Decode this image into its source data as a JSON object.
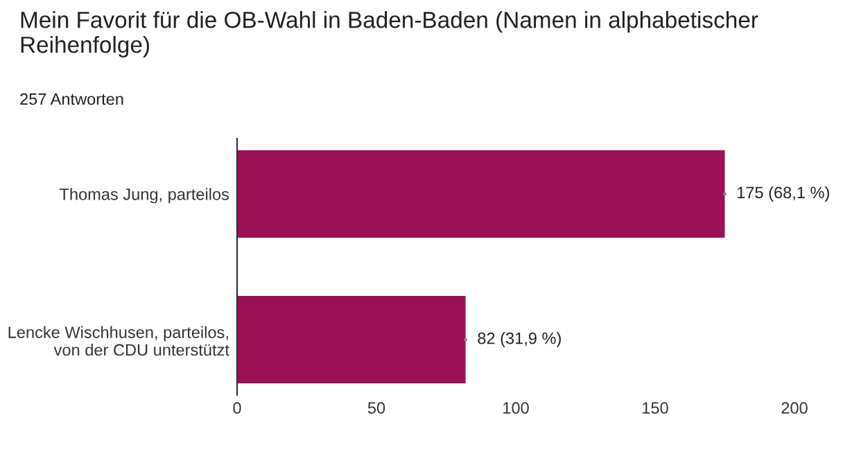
{
  "chart_data": {
    "type": "bar",
    "orientation": "horizontal",
    "title": "Mein Favorit für die OB-Wahl in Baden-Baden (Namen in alphabetischer Reihenfolge)",
    "subtitle": "257 Antworten",
    "categories": [
      "Thomas Jung, parteilos",
      "Lencke Wischhusen, parteilos,\nvon der CDU unterstützt"
    ],
    "values": [
      175,
      82
    ],
    "color": "#9c1057",
    "value_labels": [
      "175 (68,1 %)",
      "82 (31,9 %)"
    ],
    "xlim": [
      0,
      200
    ],
    "xticks": [
      0,
      50,
      100,
      150,
      200
    ],
    "grid": false
  }
}
